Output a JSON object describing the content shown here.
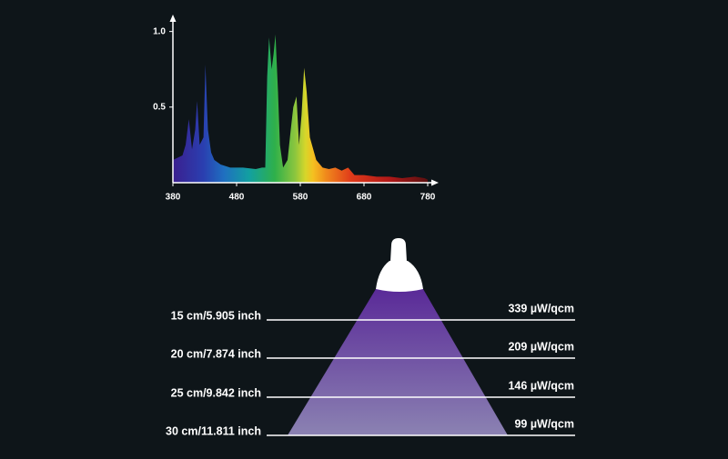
{
  "chart_data": {
    "type": "area",
    "x": [
      380,
      395,
      400,
      405,
      410,
      415,
      418,
      422,
      428,
      431,
      435,
      440,
      445,
      455,
      470,
      490,
      510,
      520,
      525,
      528,
      531,
      535,
      538,
      541,
      545,
      548,
      553,
      560,
      565,
      569,
      574,
      578,
      582,
      586,
      590,
      595,
      605,
      615,
      625,
      635,
      645,
      655,
      665,
      680,
      700,
      720,
      740,
      760,
      775,
      780
    ],
    "values": [
      0.15,
      0.18,
      0.25,
      0.42,
      0.22,
      0.35,
      0.54,
      0.25,
      0.3,
      0.78,
      0.35,
      0.2,
      0.15,
      0.12,
      0.1,
      0.1,
      0.09,
      0.1,
      0.1,
      0.7,
      0.96,
      0.75,
      0.85,
      0.98,
      0.6,
      0.25,
      0.1,
      0.15,
      0.35,
      0.5,
      0.57,
      0.25,
      0.45,
      0.76,
      0.6,
      0.3,
      0.15,
      0.1,
      0.09,
      0.1,
      0.08,
      0.1,
      0.05,
      0.05,
      0.04,
      0.04,
      0.03,
      0.04,
      0.03,
      0.02
    ],
    "xlim": [
      380,
      780
    ],
    "xticks": [
      380,
      480,
      580,
      680,
      780
    ],
    "ylim": [
      0,
      1.1
    ],
    "yticks": [
      0.5,
      {
        "value": 1,
        "label": "1.0"
      }
    ]
  },
  "lamp": {
    "rows": [
      {
        "distance": "15 cm/5.905 inch",
        "intensity": "339 µW/qcm"
      },
      {
        "distance": "20 cm/7.874 inch",
        "intensity": "209 µW/qcm"
      },
      {
        "distance": "25 cm/9.842 inch",
        "intensity": "146 µW/qcm"
      },
      {
        "distance": "30 cm/11.811 inch",
        "intensity": "99 µW/qcm"
      }
    ]
  }
}
